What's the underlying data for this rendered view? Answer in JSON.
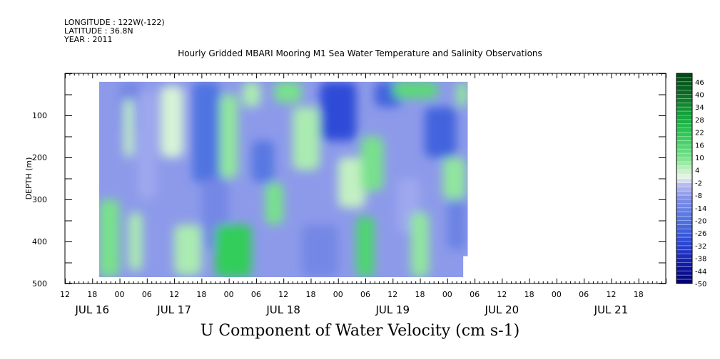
{
  "header": {
    "longitude": "LONGITUDE : 122W(-122)",
    "latitude": "LATITUDE : 36.8N",
    "year": "YEAR : 2011",
    "title": "Hourly Gridded MBARI Mooring M1 Sea Water Temperature and Salinity Observations"
  },
  "chart_data": {
    "type": "heatmap",
    "title": "U Component of Water Velocity (cm s-1)",
    "ylabel": "DEPTH (m)",
    "xlabel": "",
    "x_axis": {
      "start": "JUL 16 12:00",
      "end": "JUL 21 24:00",
      "range_hours": [
        0,
        132
      ],
      "hour_tick_labels": [
        "12",
        "18",
        "00",
        "06",
        "12",
        "18",
        "00",
        "06",
        "12",
        "18",
        "00",
        "06",
        "12",
        "18",
        "00",
        "06",
        "12",
        "18",
        "00",
        "06",
        "12",
        "18"
      ],
      "date_labels": [
        {
          "label": "JUL 16",
          "hour": 6
        },
        {
          "label": "JUL 17",
          "hour": 24
        },
        {
          "label": "JUL 18",
          "hour": 48
        },
        {
          "label": "JUL 19",
          "hour": 72
        },
        {
          "label": "JUL 20",
          "hour": 96
        },
        {
          "label": "JUL 21",
          "hour": 120
        }
      ]
    },
    "y_axis": {
      "range": [
        500,
        0
      ],
      "inverted": true,
      "tick_labels": [
        100,
        200,
        300,
        400,
        500
      ],
      "minor_step": 50
    },
    "data_extent": {
      "start_hour": 7.5,
      "end_hour": 88.5,
      "depth_top": 20,
      "depth_bottom": 485,
      "last_full_hour": 87.5,
      "last_partial_depth_bottom": 435
    },
    "colorbar": {
      "min": -50,
      "max": 50,
      "step": 2,
      "labels": [
        46,
        40,
        34,
        28,
        22,
        16,
        10,
        4,
        -2,
        -8,
        -14,
        -20,
        -26,
        -32,
        -38,
        -44,
        -50
      ]
    },
    "regions": [
      {
        "hour": [
          7.5,
          12
        ],
        "depth": [
          300,
          485
        ],
        "value": 10
      },
      {
        "hour": [
          12,
          17
        ],
        "depth": [
          20,
          140
        ],
        "value": -12
      },
      {
        "hour": [
          13,
          15
        ],
        "depth": [
          60,
          200
        ],
        "value": 4
      },
      {
        "hour": [
          14,
          17
        ],
        "depth": [
          330,
          470
        ],
        "value": 6
      },
      {
        "hour": [
          16,
          20
        ],
        "depth": [
          40,
          300
        ],
        "value": -6
      },
      {
        "hour": [
          21,
          26
        ],
        "depth": [
          30,
          200
        ],
        "value": 2
      },
      {
        "hour": [
          24,
          30
        ],
        "depth": [
          360,
          480
        ],
        "value": 6
      },
      {
        "hour": [
          28,
          34
        ],
        "depth": [
          20,
          260
        ],
        "value": -20
      },
      {
        "hour": [
          30,
          36
        ],
        "depth": [
          250,
          420
        ],
        "value": -12
      },
      {
        "hour": [
          33,
          41
        ],
        "depth": [
          360,
          485
        ],
        "value": 20
      },
      {
        "hour": [
          34,
          38
        ],
        "depth": [
          50,
          250
        ],
        "value": 8
      },
      {
        "hour": [
          39,
          43
        ],
        "depth": [
          20,
          80
        ],
        "value": 6
      },
      {
        "hour": [
          41,
          46
        ],
        "depth": [
          160,
          260
        ],
        "value": -18
      },
      {
        "hour": [
          44,
          48
        ],
        "depth": [
          260,
          360
        ],
        "value": 10
      },
      {
        "hour": [
          46,
          52
        ],
        "depth": [
          20,
          70
        ],
        "value": 10
      },
      {
        "hour": [
          50,
          56
        ],
        "depth": [
          80,
          230
        ],
        "value": 6
      },
      {
        "hour": [
          52,
          60
        ],
        "depth": [
          360,
          485
        ],
        "value": -12
      },
      {
        "hour": [
          56,
          64
        ],
        "depth": [
          20,
          160
        ],
        "value": -30
      },
      {
        "hour": [
          60,
          66
        ],
        "depth": [
          200,
          320
        ],
        "value": 4
      },
      {
        "hour": [
          64,
          68
        ],
        "depth": [
          340,
          485
        ],
        "value": 16
      },
      {
        "hour": [
          65,
          70
        ],
        "depth": [
          150,
          280
        ],
        "value": 10
      },
      {
        "hour": [
          68,
          74
        ],
        "depth": [
          20,
          80
        ],
        "value": -24
      },
      {
        "hour": [
          72,
          82
        ],
        "depth": [
          20,
          60
        ],
        "value": 14
      },
      {
        "hour": [
          73,
          78
        ],
        "depth": [
          250,
          380
        ],
        "value": -6
      },
      {
        "hour": [
          76,
          80
        ],
        "depth": [
          330,
          485
        ],
        "value": 8
      },
      {
        "hour": [
          79,
          86
        ],
        "depth": [
          80,
          200
        ],
        "value": -24
      },
      {
        "hour": [
          83,
          88
        ],
        "depth": [
          200,
          300
        ],
        "value": 8
      },
      {
        "hour": [
          84,
          88
        ],
        "depth": [
          300,
          420
        ],
        "value": -14
      },
      {
        "hour": [
          86,
          88.5
        ],
        "depth": [
          20,
          80
        ],
        "value": 8
      }
    ]
  }
}
